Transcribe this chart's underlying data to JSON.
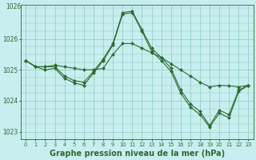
{
  "background_color": "#c8eef0",
  "grid_color": "#88ccbb",
  "line_color": "#2d6b2d",
  "marker": "D",
  "markersize": 2.0,
  "linewidth": 0.8,
  "x": [
    0,
    1,
    2,
    3,
    4,
    5,
    6,
    7,
    8,
    9,
    10,
    11,
    12,
    13,
    14,
    15,
    16,
    17,
    18,
    19,
    20,
    21,
    22,
    23
  ],
  "series1": [
    1025.3,
    1025.1,
    1025.1,
    1025.15,
    1025.1,
    1025.05,
    1025.0,
    1025.0,
    1025.05,
    1025.5,
    1025.85,
    1025.85,
    1025.7,
    1025.55,
    1025.4,
    1025.2,
    1025.0,
    1024.8,
    1024.6,
    1024.45,
    1024.5,
    1024.48,
    1024.45,
    1024.5
  ],
  "series2": [
    1025.3,
    1025.1,
    1025.1,
    1025.1,
    1024.8,
    1024.65,
    1024.6,
    1024.95,
    1025.35,
    1025.85,
    1026.85,
    1026.9,
    1026.3,
    1025.7,
    1025.4,
    1025.05,
    1024.35,
    1023.9,
    1023.65,
    1023.2,
    1023.7,
    1023.55,
    1024.35,
    1024.5
  ],
  "series3": [
    1025.3,
    1025.1,
    1025.0,
    1025.05,
    1024.72,
    1024.58,
    1024.5,
    1024.9,
    1025.3,
    1025.8,
    1026.8,
    1026.85,
    1026.25,
    1025.6,
    1025.3,
    1024.95,
    1024.25,
    1023.8,
    1023.55,
    1023.15,
    1023.6,
    1023.45,
    1024.3,
    1024.5
  ],
  "xlabel": "Graphe pression niveau de la mer (hPa)",
  "xlabel_color": "#2d6b2d",
  "xlabel_fontsize": 7.0,
  "xlabel_bold": true,
  "ylim": [
    1022.75,
    1027.1
  ],
  "yticks": [
    1023,
    1024,
    1025,
    1026
  ],
  "ytick_top": 1026,
  "ytick_fontsize": 5.5,
  "xtick_fontsize": 4.8,
  "xtick_labels": [
    "0",
    "1",
    "2",
    "3",
    "4",
    "5",
    "6",
    "7",
    "8",
    "9",
    "10",
    "11",
    "12",
    "13",
    "14",
    "15",
    "16",
    "17",
    "18",
    "19",
    "20",
    "21",
    "22",
    "23"
  ]
}
